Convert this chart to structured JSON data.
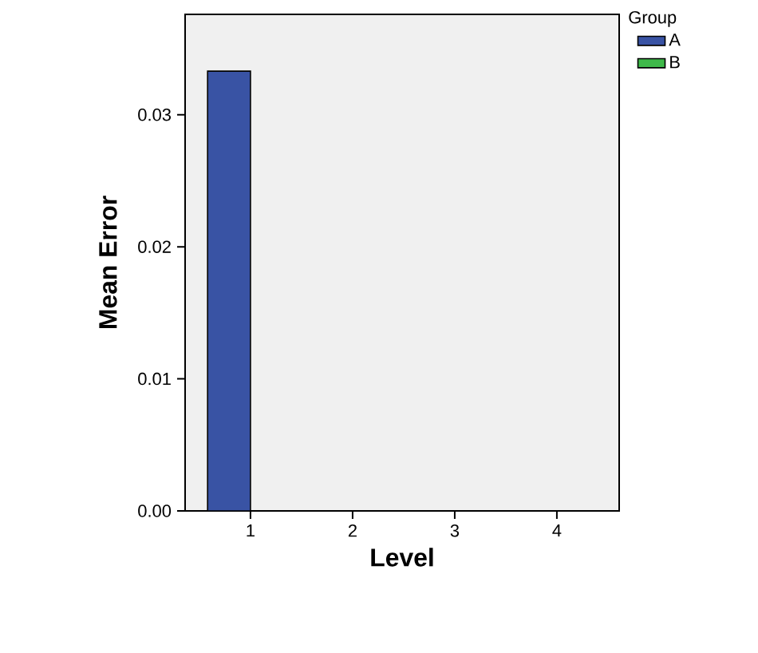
{
  "chart_data": {
    "type": "bar",
    "xlabel": "Level",
    "ylabel": "Mean Error",
    "legend_title": "Group",
    "legend": "top right",
    "categories": [
      "1",
      "2",
      "3",
      "4"
    ],
    "series": [
      {
        "name": "A",
        "color": "#3953a4",
        "values": [
          0.0333,
          0,
          0,
          0
        ]
      },
      {
        "name": "B",
        "color": "#3fb94a",
        "values": [
          0,
          0,
          0,
          0
        ]
      }
    ],
    "ylim": [
      0,
      0.0376
    ],
    "yticks": [
      {
        "value": 0,
        "label": "0.00"
      },
      {
        "value": 0.01,
        "label": "0.01"
      },
      {
        "value": 0.02,
        "label": "0.02"
      },
      {
        "value": 0.03,
        "label": "0.03"
      }
    ]
  }
}
